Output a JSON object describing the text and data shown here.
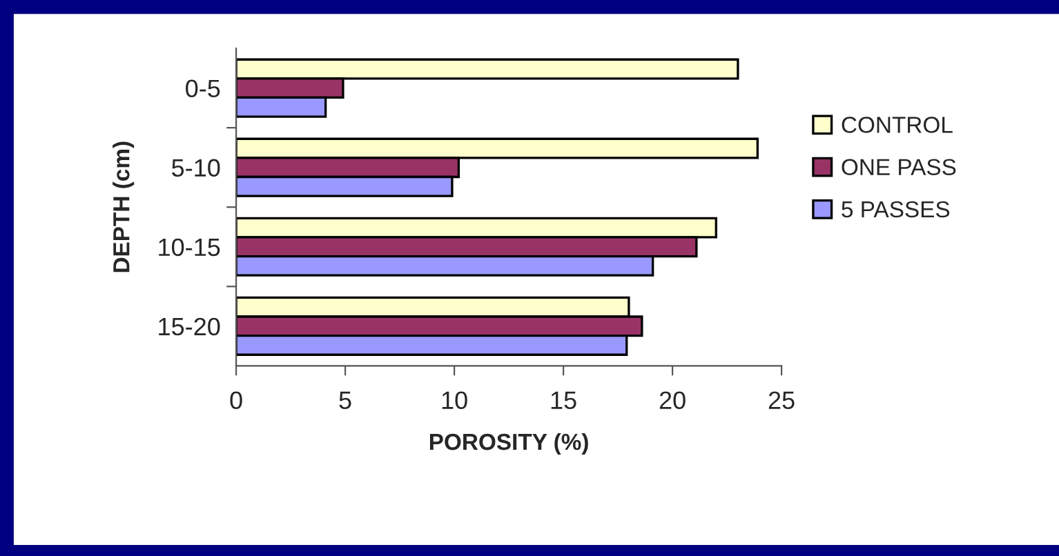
{
  "chart_data": {
    "type": "bar",
    "orientation": "horizontal",
    "xlabel": "POROSITY (%)",
    "ylabel": "DEPTH (cm)",
    "categories": [
      "0-5",
      "5-10",
      "10-15",
      "15-20"
    ],
    "series": [
      {
        "name": "CONTROL",
        "color": "#ffffcc",
        "values": [
          23.0,
          23.9,
          22.0,
          18.0
        ]
      },
      {
        "name": "ONE PASS",
        "color": "#993366",
        "values": [
          4.9,
          10.2,
          21.1,
          18.6
        ]
      },
      {
        "name": "5 PASSES",
        "color": "#9999ff",
        "values": [
          4.1,
          9.9,
          19.1,
          17.9
        ]
      }
    ],
    "xlim": [
      0,
      25
    ],
    "xticks": [
      0,
      5,
      10,
      15,
      20,
      25
    ],
    "grid": false,
    "legend": "right"
  }
}
